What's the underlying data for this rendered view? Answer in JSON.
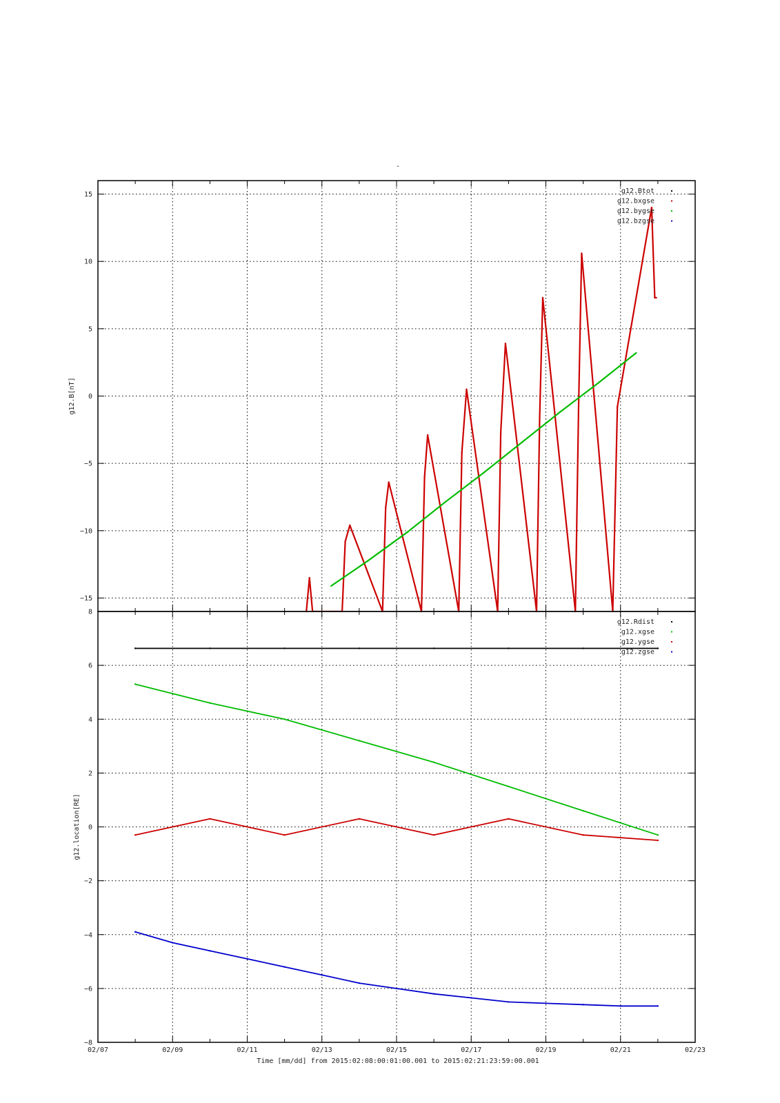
{
  "top_title": "-",
  "time_label": "Time [mm/dd]  from 2015:02:08:00:01:00.001  to  2015:02:21:23:59:00.001",
  "chart_data": [
    {
      "type": "line",
      "ylabel": "g12.B[nT]",
      "ylim": [
        -16,
        16
      ],
      "yticks": [
        -15,
        -10,
        -5,
        0,
        5,
        10,
        15
      ],
      "xlim": [
        "2015-02-07",
        "2015-02-23"
      ],
      "xticks": [
        "02/07",
        "02/09",
        "02/11",
        "02/13",
        "02/15",
        "02/17",
        "02/19",
        "02/21",
        "02/23"
      ],
      "grid": true,
      "legend_position": "top-right",
      "series": [
        {
          "name": "g12.Btot",
          "color": "#000000",
          "x": [],
          "y": []
        },
        {
          "name": "g12.bxgse",
          "color": "#cc0000",
          "x": [
            "2015-02-12T14:00",
            "2015-02-12T16:00",
            "2015-02-12T18:00",
            "2015-02-13T13:00",
            "2015-02-13T15:00",
            "2015-02-13T18:00",
            "2015-02-14T15:00",
            "2015-02-14T17:00",
            "2015-02-14T19:00",
            "2015-02-15T16:00",
            "2015-02-15T18:00",
            "2015-02-15T20:00",
            "2015-02-16T16:00",
            "2015-02-16T18:00",
            "2015-02-16T21:00",
            "2015-02-17T17:00",
            "2015-02-17T19:00",
            "2015-02-17T22:00",
            "2015-02-18T18:00",
            "2015-02-18T20:00",
            "2015-02-18T22:00",
            "2015-02-19T19:00",
            "2015-02-19T21:00",
            "2015-02-19T23:00",
            "2015-02-20T19:00",
            "2015-02-20T22:00",
            "2015-02-21T20:00",
            "2015-02-21T22:00",
            "2015-02-21T23:00"
          ],
          "y": [
            -16,
            -13.5,
            -16,
            -16,
            -10.8,
            -9.6,
            -16,
            -8.3,
            -6.4,
            -16,
            -6.0,
            -2.9,
            -16,
            -4.2,
            0.5,
            -16,
            -2.7,
            3.9,
            -16,
            -1.6,
            7.3,
            -16,
            -1.0,
            10.6,
            -16,
            -0.8,
            14.0,
            7.3,
            7.3
          ]
        },
        {
          "name": "g12.bygse",
          "color": "#00bb00",
          "x": [
            "2015-02-13T06:00",
            "2015-02-14T06:00",
            "2015-02-15T07:00",
            "2015-02-16T07:00",
            "2015-02-17T08:00",
            "2015-02-18T09:00",
            "2015-02-19T09:00",
            "2015-02-20T10:00",
            "2015-02-21T10:00"
          ],
          "y": [
            -14.1,
            -12.2,
            -10.1,
            -7.9,
            -5.7,
            -3.4,
            -1.2,
            1.0,
            3.2
          ]
        },
        {
          "name": "g12.bzgse",
          "color": "#0000cc",
          "x": [],
          "y": []
        }
      ]
    },
    {
      "type": "line",
      "ylabel": "g12.location[RE]",
      "ylim": [
        -8,
        8
      ],
      "yticks": [
        -8,
        -6,
        -4,
        -2,
        0,
        2,
        4,
        6,
        8
      ],
      "xlim": [
        "2015-02-07",
        "2015-02-23"
      ],
      "xticks": [
        "02/07",
        "02/09",
        "02/11",
        "02/13",
        "02/15",
        "02/17",
        "02/19",
        "02/21",
        "02/23"
      ],
      "grid": true,
      "legend_position": "top-right",
      "series": [
        {
          "name": "g12.Rdist",
          "color": "#000000",
          "x": [
            "2015-02-08",
            "2015-02-10",
            "2015-02-12",
            "2015-02-14",
            "2015-02-16",
            "2015-02-18",
            "2015-02-20",
            "2015-02-22"
          ],
          "y": [
            6.63,
            6.63,
            6.63,
            6.63,
            6.63,
            6.63,
            6.63,
            6.63
          ]
        },
        {
          "name": "g12.xgse",
          "color": "#00bb00",
          "x": [
            "2015-02-08",
            "2015-02-10",
            "2015-02-12",
            "2015-02-14",
            "2015-02-16",
            "2015-02-18",
            "2015-02-20",
            "2015-02-22"
          ],
          "y": [
            5.3,
            4.6,
            4.0,
            3.2,
            2.4,
            1.5,
            0.6,
            -0.3
          ]
        },
        {
          "name": "g12.ygse",
          "color": "#cc0000",
          "x": [
            "2015-02-08",
            "2015-02-10",
            "2015-02-12",
            "2015-02-14",
            "2015-02-16",
            "2015-02-18",
            "2015-02-20",
            "2015-02-22"
          ],
          "y": [
            -0.3,
            0.3,
            -0.3,
            0.3,
            -0.3,
            0.3,
            -0.3,
            -0.5
          ]
        },
        {
          "name": "g12.zgse",
          "color": "#0000cc",
          "x": [
            "2015-02-08",
            "2015-02-09",
            "2015-02-10",
            "2015-02-11",
            "2015-02-12",
            "2015-02-13",
            "2015-02-14",
            "2015-02-15",
            "2015-02-16",
            "2015-02-17",
            "2015-02-18",
            "2015-02-19",
            "2015-02-20",
            "2015-02-21",
            "2015-02-22"
          ],
          "y": [
            -3.9,
            -4.3,
            -4.6,
            -4.9,
            -5.2,
            -5.5,
            -5.8,
            -6.0,
            -6.2,
            -6.35,
            -6.5,
            -6.55,
            -6.6,
            -6.65,
            -6.65
          ]
        }
      ]
    }
  ]
}
